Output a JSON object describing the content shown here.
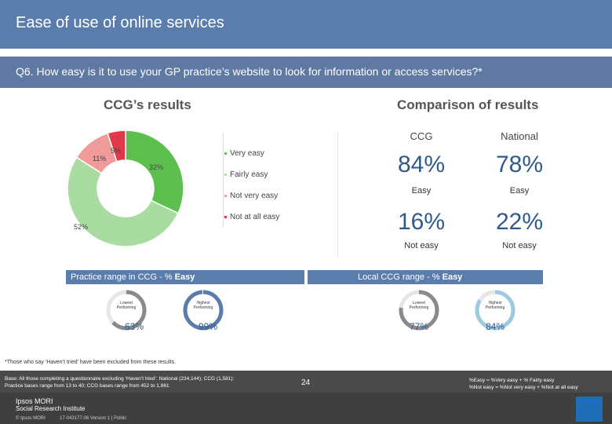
{
  "title": "Ease of use of online services",
  "question": "Q6. How easy is it to use your GP practice’s website to look for information or access services?*",
  "left_heading": "CCG’s results",
  "right_heading": "Comparison of results",
  "colors": {
    "very_easy": "#5cbf4e",
    "fairly_easy": "#a8dca0",
    "not_very_easy": "#f09a9a",
    "not_at_all_easy": "#e03a4a",
    "accent": "#5a7dab"
  },
  "chart_data": {
    "type": "pie",
    "categories": [
      "Very easy",
      "Fairly easy",
      "Not very easy",
      "Not at all easy"
    ],
    "values": [
      32,
      52,
      11,
      5
    ],
    "value_labels": [
      "32%",
      "52%",
      "11%",
      "5%"
    ],
    "legend_position": "right",
    "donut": true
  },
  "legend": [
    "Very easy",
    "Fairly easy",
    "Not very easy",
    "Not at all easy"
  ],
  "comparison": {
    "ccg_label": "CCG",
    "national_label": "National",
    "ccg_easy": "84%",
    "national_easy": "78%",
    "easy_label": "Easy",
    "ccg_not_easy": "16%",
    "national_not_easy": "22%",
    "not_easy_label": "Not easy"
  },
  "practice_range": {
    "title_prefix": "Practice range in CCG - % ",
    "title_bold": "Easy",
    "lowest_label": "Lowest Performing",
    "lowest_value": "63%",
    "lowest_fraction": 0.63,
    "highest_label": "Highest Performing",
    "highest_value": "99%",
    "highest_fraction": 0.99
  },
  "ccg_range": {
    "title_prefix": "Local CCG range - % ",
    "title_bold": "Easy",
    "lowest_label": "Lowest Performing",
    "lowest_value": "77%",
    "lowest_fraction": 0.77,
    "highest_label": "Highest Performing",
    "highest_value": "84%",
    "highest_fraction": 0.84
  },
  "footnote": "*Those who say ‘Haven’t tried’ have been excluded from these results.",
  "base_line1": "Base: All those completing a questionnaire excluding ‘Haven’t tried’: National (234,144); CCG (1,581):",
  "base_line2": "Practice bases range from 13 to 40; CCG bases range from 452 to 1,861",
  "def_line1": "%Easy = %Very easy + % Fairly easy",
  "def_line2": "%Not easy = %Not very easy + %Not at all easy",
  "page_number": "24",
  "brand_line1": "Ipsos MORI",
  "brand_line2": "Social Research Institute",
  "copyright": "© Ipsos MORI",
  "version": "17-043177-06 Version 1 | Public"
}
